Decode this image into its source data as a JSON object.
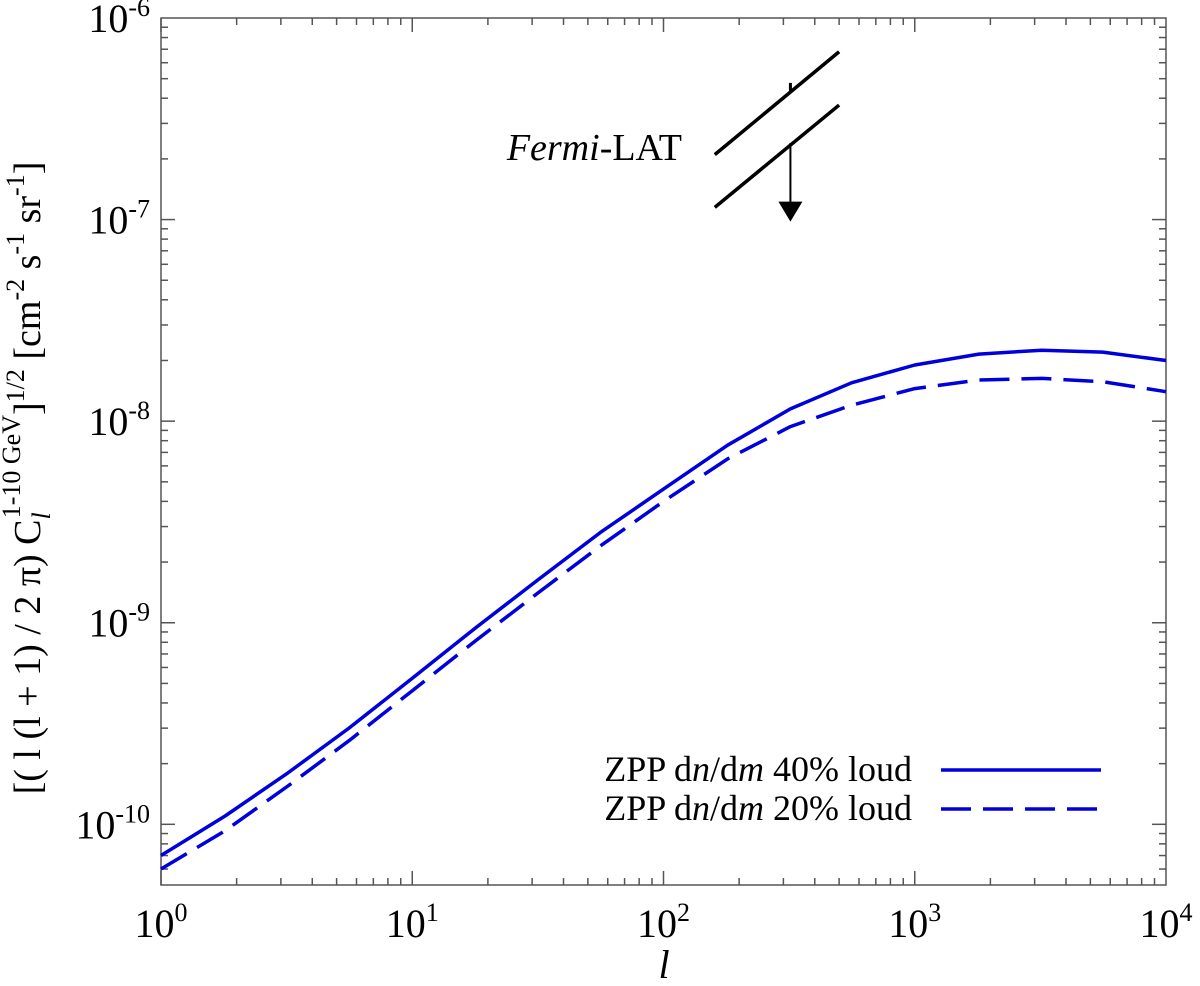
{
  "chart_data": {
    "type": "line",
    "xscale": "log",
    "yscale": "log",
    "xlim": [
      1,
      10000
    ],
    "ylim": [
      5e-11,
      1e-06
    ],
    "xlabel": "l",
    "ylabel": {
      "part1": "[( l (l + 1) / 2 π) C",
      "sub": "l",
      "sup": "1-10 GeV",
      "part2": "]",
      "exp": "1/2",
      "units": " [cm",
      "u1": "-2",
      "u2": " s",
      "u3": "-1",
      "u4": " sr",
      "u5": "-1",
      "u6": "]"
    },
    "x_ticks": [
      {
        "value": 1,
        "base": "10",
        "exp": "0"
      },
      {
        "value": 10,
        "base": "10",
        "exp": "1"
      },
      {
        "value": 100,
        "base": "10",
        "exp": "2"
      },
      {
        "value": 1000,
        "base": "10",
        "exp": "3"
      },
      {
        "value": 10000,
        "base": "10",
        "exp": "4"
      }
    ],
    "y_ticks": [
      {
        "value": 1e-10,
        "base": "10",
        "exp": "-10"
      },
      {
        "value": 1e-09,
        "base": "10",
        "exp": "-9"
      },
      {
        "value": 1e-08,
        "base": "10",
        "exp": "-8"
      },
      {
        "value": 1e-07,
        "base": "10",
        "exp": "-7"
      },
      {
        "value": 1e-06,
        "base": "10",
        "exp": "-6"
      }
    ],
    "series": [
      {
        "name": "ZPP dn/dm 40% loud",
        "legend": {
          "pre": "ZPP d",
          "it1": "n",
          "mid": "/d",
          "it2": "m",
          "post": " 40% loud"
        },
        "color": "#0000dd",
        "dash": "solid",
        "x": [
          1,
          1.8,
          3.2,
          5.6,
          10,
          18,
          32,
          56,
          100,
          180,
          320,
          560,
          1000,
          1800,
          3200,
          5600,
          10000
        ],
        "y": [
          7e-11,
          1.1e-10,
          1.8e-10,
          3e-10,
          5.3e-10,
          9.5e-10,
          1.65e-09,
          2.8e-09,
          4.6e-09,
          7.6e-09,
          1.15e-08,
          1.55e-08,
          1.9e-08,
          2.15e-08,
          2.25e-08,
          2.2e-08,
          2e-08
        ]
      },
      {
        "name": "ZPP dn/dm 20% loud",
        "legend": {
          "pre": "ZPP d",
          "it1": "n",
          "mid": "/d",
          "it2": "m",
          "post": " 20% loud"
        },
        "color": "#0000dd",
        "dash": "dashed",
        "x": [
          1,
          1.8,
          3.2,
          5.6,
          10,
          18,
          32,
          56,
          100,
          180,
          320,
          560,
          1000,
          1800,
          3200,
          5600,
          10000
        ],
        "y": [
          6e-11,
          9.3e-11,
          1.55e-10,
          2.6e-10,
          4.6e-10,
          8.2e-10,
          1.42e-09,
          2.4e-09,
          4e-09,
          6.5e-09,
          9.4e-09,
          1.2e-08,
          1.45e-08,
          1.6e-08,
          1.63e-08,
          1.57e-08,
          1.4e-08
        ]
      }
    ],
    "annotation": {
      "label_italic": "Fermi",
      "label_rest": "-LAT",
      "upper_line": {
        "x": [
          160,
          500
        ],
        "y": [
          2.1e-07,
          6.8e-07
        ]
      },
      "lower_line": {
        "x": [
          160,
          500
        ],
        "y": [
          1.15e-07,
          3.7e-07
        ]
      },
      "error_point": {
        "x": 320,
        "y": 4.5e-07
      },
      "upper_limit_arrow": {
        "x": 320,
        "y_from": 2.4e-07,
        "y_to": 1e-07
      }
    },
    "legend_position": "bottom-right",
    "grid": false
  }
}
